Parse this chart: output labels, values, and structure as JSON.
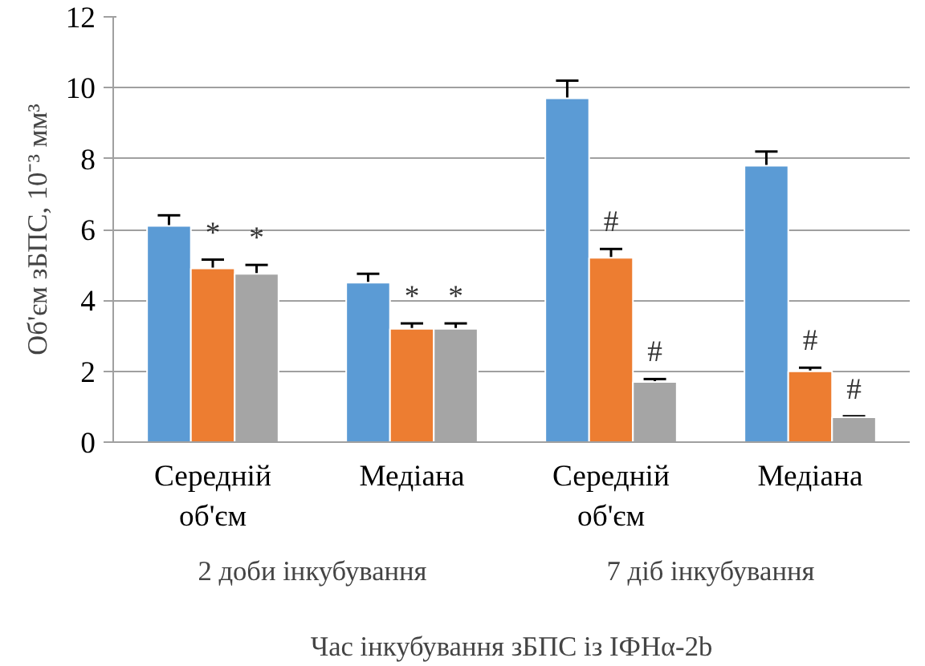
{
  "chart_data": {
    "type": "bar",
    "xlabel": "Час інкубування зБПС із ІФНα-2b",
    "ylabel": "Об'єм зБПС, 10⁻³ мм³",
    "categories": [
      "Середній\nоб'єм",
      "Медіана",
      "Середній\nоб'єм",
      "Медіана"
    ],
    "annotations": [
      "2 доби інкубування",
      "7 діб інкубування"
    ],
    "series": [
      {
        "color": "#5b9bd5",
        "values": [
          6.1,
          4.5,
          9.7,
          7.8
        ],
        "errors": [
          0.3,
          0.25,
          0.5,
          0.4
        ]
      },
      {
        "color": "#ed7d31",
        "values": [
          4.9,
          3.2,
          5.2,
          2.0
        ],
        "errors": [
          0.25,
          0.15,
          0.25,
          0.1
        ],
        "value_labels": [
          "*",
          "*",
          "#",
          "#"
        ]
      },
      {
        "color": "#a5a5a5",
        "values": [
          4.75,
          3.2,
          1.7,
          0.7
        ],
        "errors": [
          0.25,
          0.15,
          0.08,
          0.03
        ],
        "value_labels": [
          "*",
          "*",
          "#",
          "#"
        ]
      }
    ],
    "ylim": [
      0,
      12
    ],
    "yticks": [
      0,
      2,
      4,
      6,
      8,
      10,
      12
    ],
    "grid": "y"
  }
}
